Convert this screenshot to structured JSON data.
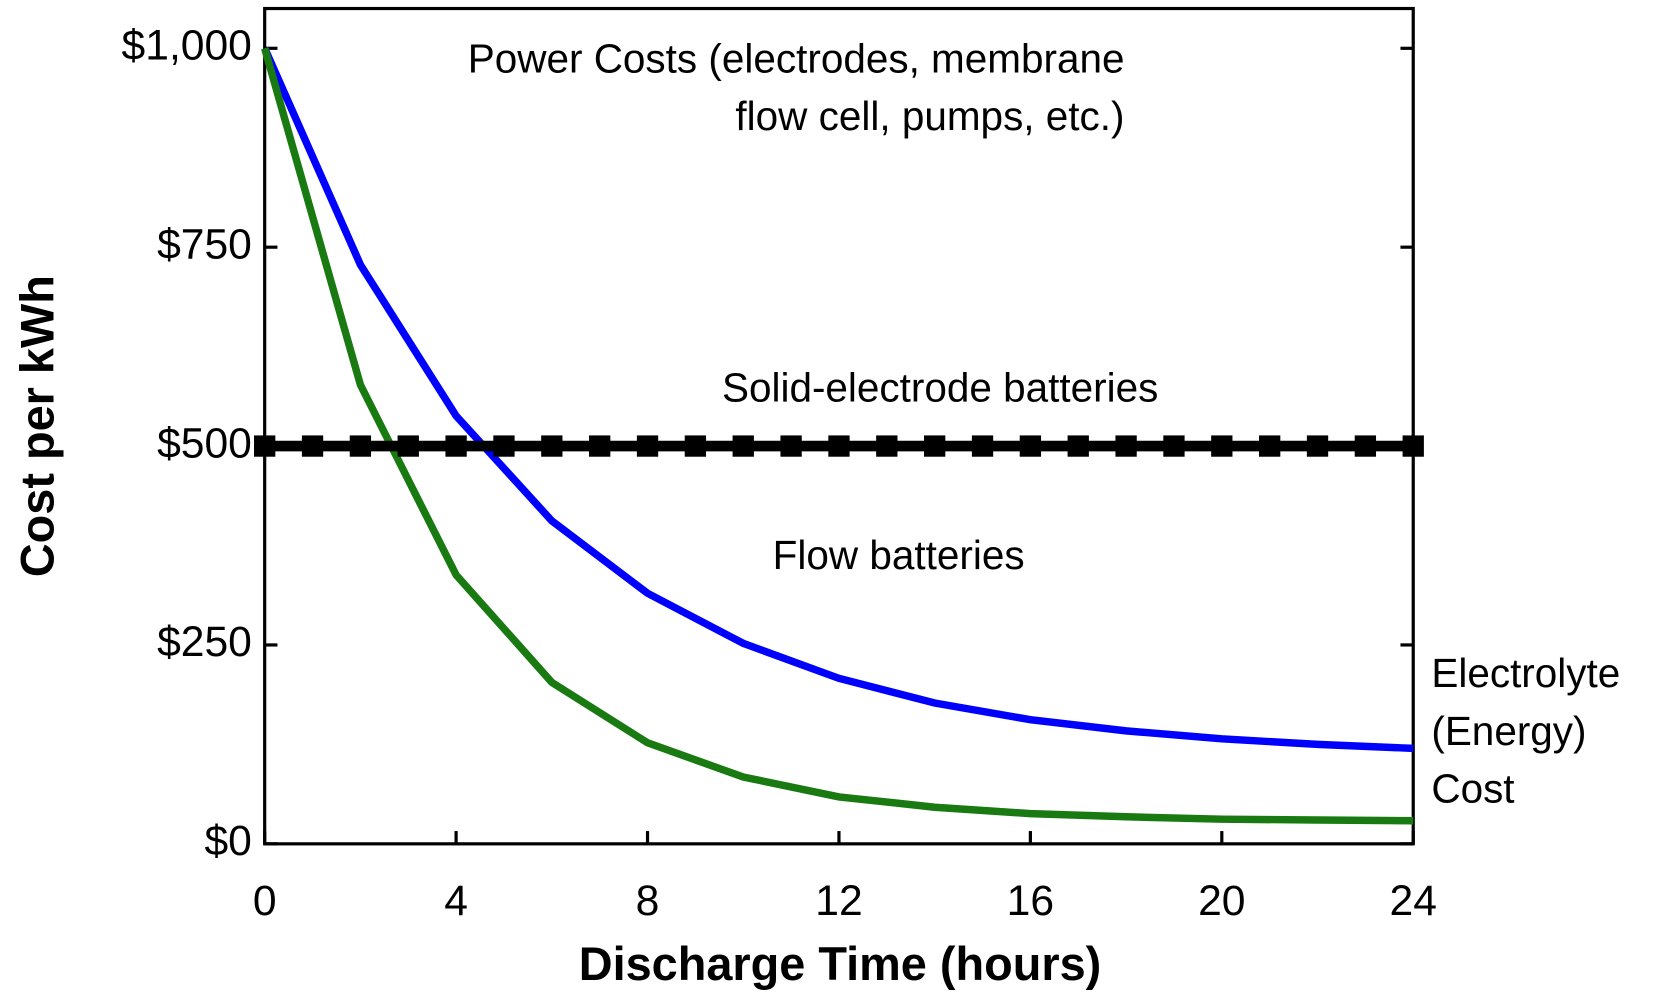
{
  "chart_data": {
    "type": "line",
    "xlabel": "Discharge Time (hours)",
    "ylabel": "Cost per kWh",
    "xlim": [
      0,
      24
    ],
    "xticks": [
      0,
      4,
      8,
      12,
      16,
      20,
      24
    ],
    "ylim": [
      0,
      1050
    ],
    "yticks": [
      {
        "value": 0,
        "label": "$0"
      },
      {
        "value": 250,
        "label": "$250"
      },
      {
        "value": 500,
        "label": "$500"
      },
      {
        "value": 750,
        "label": "$750"
      },
      {
        "value": 1000,
        "label": "$1,000"
      }
    ],
    "annotations": [
      "Power Costs (electrodes, membrane",
      "flow cell, pumps, etc.)",
      "Solid-electrode batteries",
      "Flow batteries",
      "Electrolyte",
      "(Energy)",
      "Cost"
    ],
    "series": [
      {
        "color": "#0000ff",
        "x": [
          0,
          2,
          4,
          6,
          8,
          10,
          12,
          14,
          16,
          18,
          20,
          22,
          24
        ],
        "values": [
          1000,
          728,
          538,
          406,
          315,
          252,
          208,
          177,
          156,
          142,
          132,
          125,
          120
        ]
      },
      {
        "color": "#1a7a12",
        "x": [
          0,
          2,
          4,
          6,
          8,
          10,
          12,
          14,
          16,
          18,
          20,
          22,
          24
        ],
        "values": [
          1000,
          577,
          338,
          203,
          127,
          84,
          59,
          46,
          38,
          34,
          31,
          30,
          29
        ]
      },
      {
        "color": "#000000",
        "marker": "square",
        "x": [
          0,
          1,
          2,
          3,
          4,
          5,
          6,
          7,
          8,
          9,
          10,
          11,
          12,
          13,
          14,
          15,
          16,
          17,
          18,
          19,
          20,
          21,
          22,
          23,
          24
        ],
        "values": [
          500,
          500,
          500,
          500,
          500,
          500,
          500,
          500,
          500,
          500,
          500,
          500,
          500,
          500,
          500,
          500,
          500,
          500,
          500,
          500,
          500,
          500,
          500,
          500,
          500
        ]
      }
    ]
  }
}
